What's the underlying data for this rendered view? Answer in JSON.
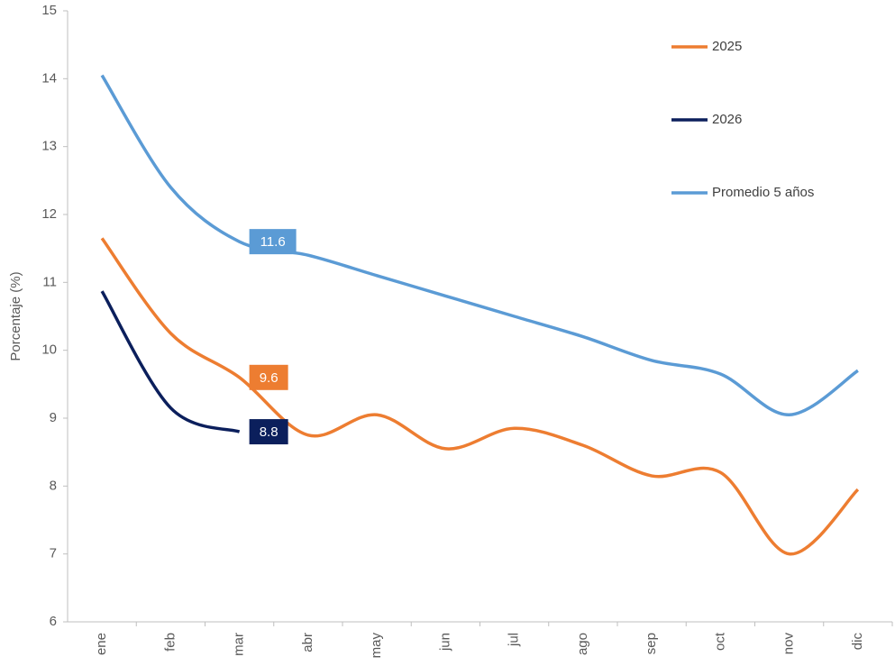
{
  "chart_data": {
    "type": "line",
    "y_label": "Porcentaje (%)",
    "categories": [
      "ene",
      "feb",
      "mar",
      "abr",
      "may",
      "jun",
      "jul",
      "ago",
      "sep",
      "oct",
      "nov",
      "dic"
    ],
    "series": [
      {
        "name": "2025",
        "color": "#ed7d31",
        "values": [
          11.65,
          10.25,
          9.6,
          8.75,
          9.05,
          8.55,
          8.85,
          8.6,
          8.15,
          8.2,
          7.0,
          7.95
        ],
        "value_labels": [
          null,
          null,
          "9.6",
          null,
          null,
          null,
          null,
          null,
          null,
          null,
          null,
          null
        ]
      },
      {
        "name": "2026",
        "color": "#0b1f5c",
        "values": [
          10.87,
          9.15,
          8.8,
          null,
          null,
          null,
          null,
          null,
          null,
          null,
          null,
          null
        ],
        "value_labels": [
          null,
          null,
          "8.8",
          null,
          null,
          null,
          null,
          null,
          null,
          null,
          null,
          null
        ]
      },
      {
        "name": "Promedio 5 años",
        "color": "#5b9bd5",
        "values": [
          14.05,
          12.4,
          11.6,
          11.4,
          11.1,
          10.8,
          10.5,
          10.2,
          9.85,
          9.65,
          9.05,
          9.7
        ],
        "value_labels": [
          null,
          null,
          "11.6",
          null,
          null,
          null,
          null,
          null,
          null,
          null,
          null,
          null
        ]
      }
    ],
    "ylim": [
      6,
      15
    ],
    "yticks": [
      6,
      7,
      8,
      9,
      10,
      11,
      12,
      13,
      14,
      15
    ],
    "grid": false,
    "legend": "upper right",
    "smooth": true
  }
}
